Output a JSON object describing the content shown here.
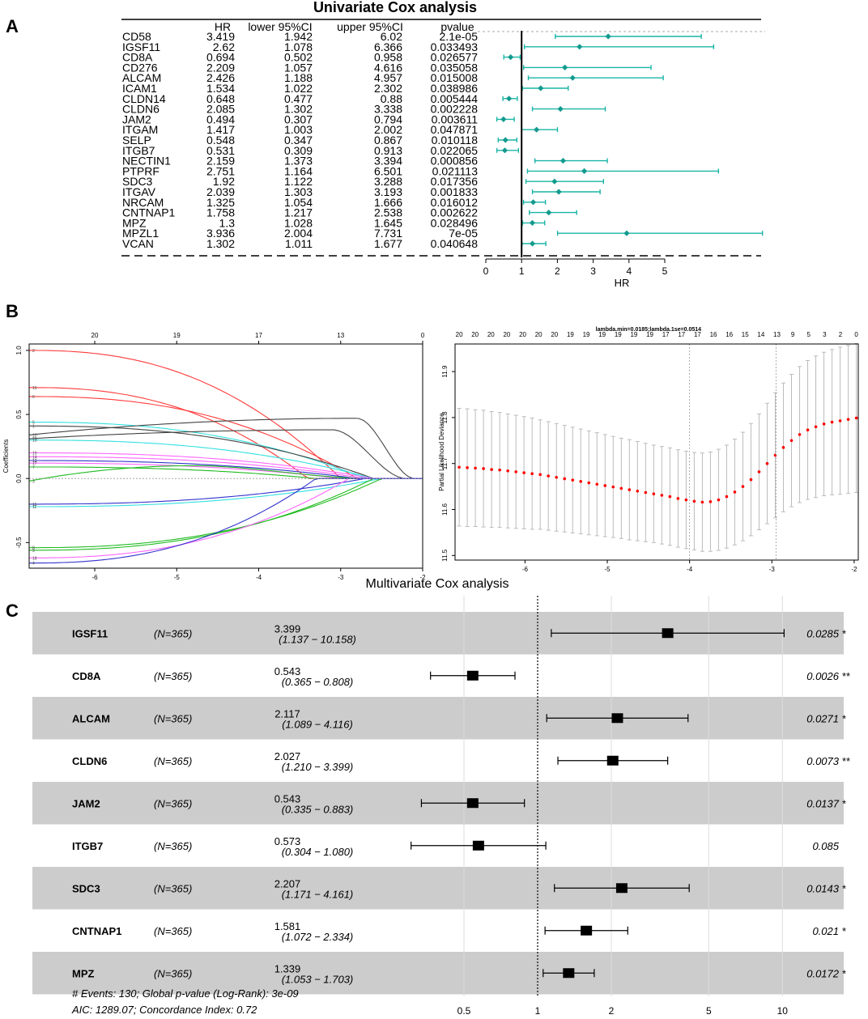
{
  "panel_labels": {
    "a": "A",
    "b": "B",
    "c": "C"
  },
  "colors": {
    "teal": "#1ab5a6",
    "tealDot": "#139a8e",
    "lassoCurve": "#e6e6e6",
    "rowShade": "#cccccc",
    "redDot": "#ff0000",
    "errGray": "#bbbbbb"
  },
  "chart_data": [
    {
      "type": "forest",
      "title": "Univariate Cox analysis",
      "column_headers": [
        "HR",
        "lower 95%CI",
        "upper 95%CI",
        "pvalue"
      ],
      "xlabel": "HR",
      "xticks": [
        "0",
        "1",
        "2",
        "3",
        "4",
        "5"
      ],
      "xlim": [
        0,
        7.731
      ],
      "reference_line": 1,
      "rows": [
        {
          "gene": "CD58",
          "hr": "3.419",
          "lower": "1.942",
          "upper": "6.02",
          "p": "2.1e-05"
        },
        {
          "gene": "IGSF11",
          "hr": "2.62",
          "lower": "1.078",
          "upper": "6.366",
          "p": "0.033493"
        },
        {
          "gene": "CD8A",
          "hr": "0.694",
          "lower": "0.502",
          "upper": "0.958",
          "p": "0.026577"
        },
        {
          "gene": "CD276",
          "hr": "2.209",
          "lower": "1.057",
          "upper": "4.616",
          "p": "0.035058"
        },
        {
          "gene": "ALCAM",
          "hr": "2.426",
          "lower": "1.188",
          "upper": "4.957",
          "p": "0.015008"
        },
        {
          "gene": "ICAM1",
          "hr": "1.534",
          "lower": "1.022",
          "upper": "2.302",
          "p": "0.038986"
        },
        {
          "gene": "CLDN14",
          "hr": "0.648",
          "lower": "0.477",
          "upper": "0.88",
          "p": "0.005444"
        },
        {
          "gene": "CLDN6",
          "hr": "2.085",
          "lower": "1.302",
          "upper": "3.338",
          "p": "0.002228"
        },
        {
          "gene": "JAM2",
          "hr": "0.494",
          "lower": "0.307",
          "upper": "0.794",
          "p": "0.003611"
        },
        {
          "gene": "ITGAM",
          "hr": "1.417",
          "lower": "1.003",
          "upper": "2.002",
          "p": "0.047871"
        },
        {
          "gene": "SELP",
          "hr": "0.548",
          "lower": "0.347",
          "upper": "0.867",
          "p": "0.010118"
        },
        {
          "gene": "ITGB7",
          "hr": "0.531",
          "lower": "0.309",
          "upper": "0.913",
          "p": "0.022065"
        },
        {
          "gene": "NECTIN1",
          "hr": "2.159",
          "lower": "1.373",
          "upper": "3.394",
          "p": "0.000856"
        },
        {
          "gene": "PTPRF",
          "hr": "2.751",
          "lower": "1.164",
          "upper": "6.501",
          "p": "0.021113"
        },
        {
          "gene": "SDC3",
          "hr": "1.92",
          "lower": "1.122",
          "upper": "3.288",
          "p": "0.017356"
        },
        {
          "gene": "ITGAV",
          "hr": "2.039",
          "lower": "1.303",
          "upper": "3.193",
          "p": "0.001833"
        },
        {
          "gene": "NRCAM",
          "hr": "1.325",
          "lower": "1.054",
          "upper": "1.666",
          "p": "0.016012"
        },
        {
          "gene": "CNTNAP1",
          "hr": "1.758",
          "lower": "1.217",
          "upper": "2.538",
          "p": "0.002622"
        },
        {
          "gene": "MPZ",
          "hr": "1.3",
          "lower": "1.028",
          "upper": "1.645",
          "p": "0.028496"
        },
        {
          "gene": "MPZL1",
          "hr": "3.936",
          "lower": "2.004",
          "upper": "7.731",
          "p": "7e-05"
        },
        {
          "gene": "VCAN",
          "hr": "1.302",
          "lower": "1.011",
          "upper": "1.677",
          "p": "0.040648"
        }
      ]
    },
    {
      "type": "line",
      "title": "",
      "xlabel": "",
      "ylabel": "Coefficients",
      "xlim": [
        -6.8,
        -2.0
      ],
      "ylim": [
        -0.7,
        1.05
      ],
      "xticks": [
        "-6",
        "-5",
        "-4",
        "-3",
        "-2"
      ],
      "yticks": [
        "-0.5",
        "0.0",
        "0.5",
        "1.0"
      ],
      "top_ticks": [
        {
          "x": -6,
          "label": "20"
        },
        {
          "x": -5,
          "label": "19"
        },
        {
          "x": -4,
          "label": "17"
        },
        {
          "x": -3,
          "label": "13"
        },
        {
          "x": -2,
          "label": "0"
        }
      ],
      "series": [
        {
          "name": "2",
          "color": "#ff3b3b",
          "start": 1.0,
          "zero_at": -3.0,
          "shape": "fall"
        },
        {
          "name": "15",
          "color": "#ff3b3b",
          "start": 0.71,
          "zero_at": -3.4,
          "shape": "fall"
        },
        {
          "name": "6",
          "color": "#ff3b3b",
          "start": 0.64,
          "zero_at": -2.8,
          "shape": "fall"
        },
        {
          "name": "5",
          "color": "#33e0e0",
          "start": 0.44,
          "zero_at": -2.7,
          "shape": "fall"
        },
        {
          "name": "1",
          "color": "#444444",
          "start": 0.41,
          "zero_at": -2.6,
          "shape": "fall"
        },
        {
          "name": "10",
          "color": "#444444",
          "start": 0.34,
          "zero_at": -2.1,
          "shape": "bump",
          "peak": 0.47,
          "peak_at": -2.8
        },
        {
          "name": "20",
          "color": "#444444",
          "start": 0.31,
          "zero_at": -2.2,
          "shape": "bump",
          "peak": 0.38,
          "peak_at": -3.1
        },
        {
          "name": "13",
          "color": "#33e0e0",
          "start": 0.3,
          "zero_at": -2.6,
          "shape": "fall"
        },
        {
          "name": "19",
          "color": "#ff66ff",
          "start": 0.2,
          "zero_at": -2.6,
          "shape": "fall"
        },
        {
          "name": "14",
          "color": "#ff66ff",
          "start": 0.17,
          "zero_at": -2.7,
          "shape": "fall"
        },
        {
          "name": "12",
          "color": "#3333cc",
          "start": 0.14,
          "zero_at": -2.8,
          "shape": "fall"
        },
        {
          "name": "17",
          "color": "#ff66ff",
          "start": 0.12,
          "zero_at": -3.0,
          "shape": "fall"
        },
        {
          "name": "7",
          "color": "#22bb22",
          "start": 0.09,
          "zero_at": -3.3,
          "shape": "fall"
        },
        {
          "name": "3",
          "color": "#22bb22",
          "start": -0.02,
          "zero_at": -2.6,
          "shape": "bump",
          "peak": 0.1,
          "peak_at": -4.8
        },
        {
          "name": "16",
          "color": "#3333cc",
          "start": -0.2,
          "zero_at": -2.7,
          "shape": "fall"
        },
        {
          "name": "11",
          "color": "#33e0e0",
          "start": -0.22,
          "zero_at": -2.5,
          "shape": "fall"
        },
        {
          "name": "8",
          "color": "#22bb22",
          "start": -0.54,
          "zero_at": -2.5,
          "shape": "fall"
        },
        {
          "name": "9",
          "color": "#22bb22",
          "start": -0.56,
          "zero_at": -2.6,
          "shape": "fall"
        },
        {
          "name": "18",
          "color": "#ff66ff",
          "start": -0.62,
          "zero_at": -2.9,
          "shape": "fall"
        },
        {
          "name": "4",
          "color": "#3333cc",
          "start": -0.66,
          "zero_at": -3.3,
          "shape": "fall"
        }
      ]
    },
    {
      "type": "scatter",
      "title": "",
      "annotation": "lambda.min=0.0185;lambda.1se=0.0514",
      "xlabel": "",
      "ylabel": "Partial Likelihood Deviance",
      "xlim": [
        -6.85,
        -1.95
      ],
      "ylim": [
        11.49,
        11.96
      ],
      "xticks": [
        "-6",
        "-5",
        "-4",
        "-3",
        "-2"
      ],
      "yticks": [
        "11.5",
        "11.6",
        "11.7",
        "11.8",
        "11.9"
      ],
      "vlines": [
        -4.0,
        -2.95
      ],
      "top_ticks": [
        "20",
        "20",
        "20",
        "20",
        "20",
        "20",
        "20",
        "19",
        "19",
        "19",
        "19",
        "19",
        "19",
        "17",
        "17",
        "17",
        "16",
        "16",
        "15",
        "14",
        "13",
        "9",
        "5",
        "3",
        "2",
        "0"
      ],
      "x_start": -6.8,
      "x_step": 0.0985,
      "mean": [
        11.692,
        11.691,
        11.69,
        11.689,
        11.687,
        11.686,
        11.684,
        11.682,
        11.68,
        11.678,
        11.676,
        11.673,
        11.67,
        11.667,
        11.664,
        11.661,
        11.658,
        11.655,
        11.652,
        11.649,
        11.646,
        11.643,
        11.64,
        11.637,
        11.634,
        11.631,
        11.628,
        11.624,
        11.621,
        11.618,
        11.616,
        11.617,
        11.621,
        11.628,
        11.638,
        11.65,
        11.665,
        11.682,
        11.7,
        11.718,
        11.735,
        11.75,
        11.763,
        11.773,
        11.78,
        11.786,
        11.79,
        11.793,
        11.796,
        11.799
      ],
      "half_width": [
        0.128,
        0.128,
        0.127,
        0.127,
        0.126,
        0.125,
        0.124,
        0.123,
        0.122,
        0.121,
        0.119,
        0.118,
        0.117,
        0.116,
        0.115,
        0.114,
        0.113,
        0.112,
        0.111,
        0.11,
        0.109,
        0.109,
        0.108,
        0.107,
        0.106,
        0.106,
        0.106,
        0.106,
        0.106,
        0.106,
        0.107,
        0.108,
        0.11,
        0.112,
        0.115,
        0.118,
        0.122,
        0.126,
        0.131,
        0.136,
        0.14,
        0.144,
        0.148,
        0.151,
        0.154,
        0.156,
        0.158,
        0.16,
        0.161,
        0.162
      ]
    },
    {
      "type": "forest",
      "title": "Multivariate Cox analysis",
      "scale": "log",
      "xticks": [
        "0.5",
        "1",
        "2",
        "5",
        "10"
      ],
      "xlim": [
        0.27,
        12.5
      ],
      "reference_line": 1,
      "rows": [
        {
          "gene": "IGSF11",
          "n": "(N=365)",
          "hr": "3.399",
          "ci": "(1.137 − 10.158)",
          "p": "0.0285",
          "sig": "*",
          "hr_v": 3.399,
          "lo_v": 1.137,
          "hi_v": 10.158
        },
        {
          "gene": "CD8A",
          "n": "(N=365)",
          "hr": "0.543",
          "ci": "(0.365 − 0.808)",
          "p": "0.0026",
          "sig": "**",
          "hr_v": 0.543,
          "lo_v": 0.365,
          "hi_v": 0.808
        },
        {
          "gene": "ALCAM",
          "n": "(N=365)",
          "hr": "2.117",
          "ci": "(1.089 − 4.116)",
          "p": "0.0271",
          "sig": "*",
          "hr_v": 2.117,
          "lo_v": 1.089,
          "hi_v": 4.116
        },
        {
          "gene": "CLDN6",
          "n": "(N=365)",
          "hr": "2.027",
          "ci": "(1.210 − 3.399)",
          "p": "0.0073",
          "sig": "**",
          "hr_v": 2.027,
          "lo_v": 1.21,
          "hi_v": 3.399
        },
        {
          "gene": "JAM2",
          "n": "(N=365)",
          "hr": "0.543",
          "ci": "(0.335 − 0.883)",
          "p": "0.0137",
          "sig": "*",
          "hr_v": 0.543,
          "lo_v": 0.335,
          "hi_v": 0.883
        },
        {
          "gene": "ITGB7",
          "n": "(N=365)",
          "hr": "0.573",
          "ci": "(0.304 − 1.080)",
          "p": "0.085",
          "sig": "",
          "hr_v": 0.573,
          "lo_v": 0.304,
          "hi_v": 1.08
        },
        {
          "gene": "SDC3",
          "n": "(N=365)",
          "hr": "2.207",
          "ci": "(1.171 − 4.161)",
          "p": "0.0143",
          "sig": "*",
          "hr_v": 2.207,
          "lo_v": 1.171,
          "hi_v": 4.161
        },
        {
          "gene": "CNTNAP1",
          "n": "(N=365)",
          "hr": "1.581",
          "ci": "(1.072 − 2.334)",
          "p": "0.021",
          "sig": "*",
          "hr_v": 1.581,
          "lo_v": 1.072,
          "hi_v": 2.334
        },
        {
          "gene": "MPZ",
          "n": "(N=365)",
          "hr": "1.339",
          "ci": "(1.053 − 1.703)",
          "p": "0.0172",
          "sig": "*",
          "hr_v": 1.339,
          "lo_v": 1.053,
          "hi_v": 1.703
        }
      ],
      "footer": [
        "# Events: 130; Global p-value (Log-Rank): 3e-09",
        "AIC: 1289.07; Concordance Index: 0.72"
      ]
    }
  ]
}
